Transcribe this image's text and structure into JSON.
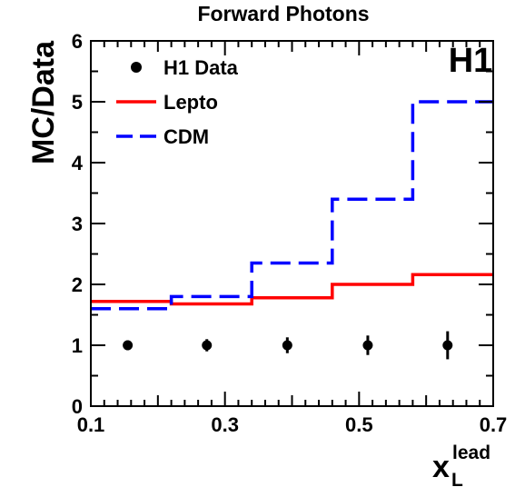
{
  "chart_data": {
    "type": "line",
    "title": "Forward Photons",
    "watermark": "H1",
    "xlabel": "x",
    "xlabel_sub": "L",
    "xlabel_sup": "lead",
    "ylabel": "MC/Data",
    "xlim": [
      0.1,
      0.7
    ],
    "ylim": [
      0,
      6
    ],
    "xticks": [
      0.1,
      0.3,
      0.5,
      0.7
    ],
    "xtick_labels": [
      "0.1",
      "0.3",
      "0.5",
      "0.7"
    ],
    "yticks": [
      0,
      1,
      2,
      3,
      4,
      5,
      6
    ],
    "ytick_labels": [
      "0",
      "1",
      "2",
      "3",
      "4",
      "5",
      "6"
    ],
    "bin_edges": [
      0.1,
      0.22,
      0.34,
      0.46,
      0.58,
      0.7
    ],
    "legend_position": "top-left",
    "series": [
      {
        "name": "H1 Data",
        "style": "points",
        "color": "#000000",
        "x": [
          0.155,
          0.273,
          0.393,
          0.513,
          0.632
        ],
        "y": [
          1.0,
          1.0,
          1.0,
          1.0,
          1.0
        ],
        "err": [
          0.08,
          0.1,
          0.13,
          0.16,
          0.23
        ]
      },
      {
        "name": "Lepto",
        "style": "step-solid",
        "color": "#ff0000",
        "values": [
          1.72,
          1.68,
          1.78,
          2.0,
          2.16
        ]
      },
      {
        "name": "CDM",
        "style": "step-dashed",
        "color": "#0000ff",
        "values": [
          1.6,
          1.8,
          2.35,
          3.4,
          5.0
        ]
      }
    ]
  }
}
